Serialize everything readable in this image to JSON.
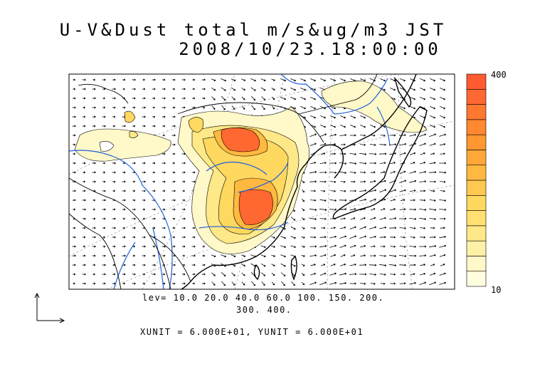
{
  "title": {
    "line1": "U-V&Dust total m/s&ug/m3 JST",
    "line2": "2008/10/23.18:00:00"
  },
  "contour_levels": {
    "line1": "lev= 10.0 20.0 40.0 60.0 100. 150. 200.",
    "line2": "300. 400."
  },
  "units_text": "XUNIT = 6.000E+01, YUNIT = 6.000E+01",
  "colorbar": {
    "max_label": "400",
    "min_label": "10",
    "colors": [
      "#ffffe0",
      "#fff8c8",
      "#fff0a8",
      "#ffe888",
      "#ffe070",
      "#ffd860",
      "#ffc850",
      "#ffb840",
      "#ffa838",
      "#ff9830",
      "#ff8830",
      "#ff7830",
      "#ff6830",
      "#ff5a30"
    ]
  },
  "colors": {
    "coast": "#000000",
    "river": "#1f5fd8",
    "dust_low": "#fff8c8",
    "dust_mid": "#ffd860",
    "dust_high": "#ff6830"
  }
}
